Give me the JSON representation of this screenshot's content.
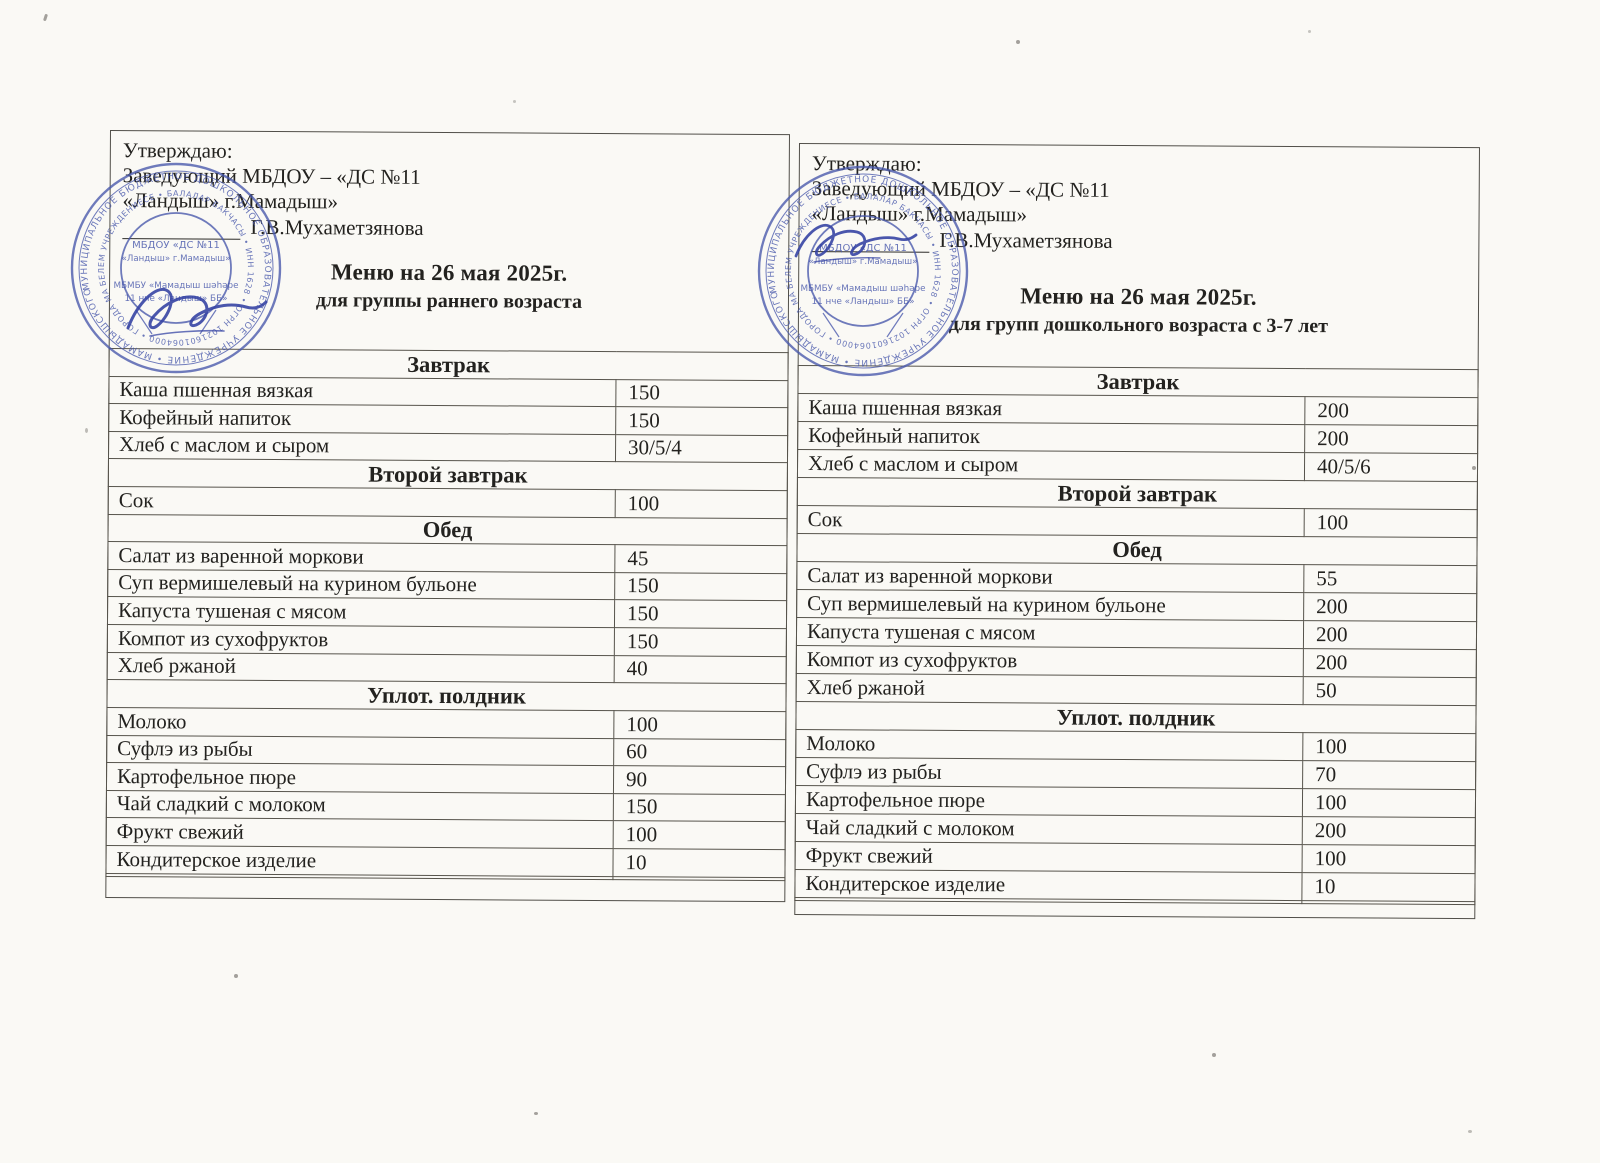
{
  "colors": {
    "paper": "#faf9f5",
    "ink": "#23221f",
    "table_line": "#57544c",
    "stamp_blue": "#4757ab",
    "signature_blue": "#3644a4"
  },
  "stamp": {
    "ring_outer": "МУНИЦИПАЛЬНОЕ БЮДЖЕТНОЕ ДОШКОЛЬНОЕ ОБРАЗОВАТЕЛЬНОЕ УЧРЕЖДЕНИЕ • МАМАДЫШСКОГО МУНИЦИПАЛЬНОГО РАЙОНА РЕСПУБЛИКИ ТАТАРСТАН",
    "ring_middle": "БЕЛЕМ УЧРЕЖДЕНИЕСЕ • БАЛАЛАР БАКЧАСЫ • ИНН 1628 • ОГРН 1021601064000 • ГОРОДА МАМАДЫШ",
    "center_line1": "МБДОУ «ДС №11",
    "center_line2": "«Ландыш» г.Мамадыш»",
    "center_line3": "МБМБУ «Мамадыш шәһәре",
    "center_line4": "11 нче «Ландыш» ББ»"
  },
  "menus": [
    {
      "approve_line1": "Утверждаю:",
      "approve_line2": "Заведующий МБДОУ – «ДС №11",
      "approve_line3": "«Ландыш» г.Мамадыш»",
      "signatory": "Г.В.Мухаметзянова",
      "title": "Меню на 26 мая 2025г.",
      "subtitle": "для группы раннего возраста",
      "rows": [
        {
          "type": "section",
          "label": "Завтрак"
        },
        {
          "type": "item",
          "name": "Каша пшенная вязкая",
          "qty": "150"
        },
        {
          "type": "item",
          "name": "Кофейный напиток",
          "qty": "150"
        },
        {
          "type": "item",
          "name": "Хлеб с маслом и сыром",
          "qty": "30/5/4"
        },
        {
          "type": "section",
          "label": "Второй завтрак"
        },
        {
          "type": "item",
          "name": "Сок",
          "qty": "100"
        },
        {
          "type": "section",
          "label": "Обед"
        },
        {
          "type": "item",
          "name": "Салат из варенной моркови",
          "qty": "45"
        },
        {
          "type": "item",
          "name": "Суп вермишелевый на курином бульоне",
          "qty": "150"
        },
        {
          "type": "item",
          "name": "Капуста тушеная с мясом",
          "qty": "150"
        },
        {
          "type": "item",
          "name": "Компот из сухофруктов",
          "qty": "150"
        },
        {
          "type": "item",
          "name": "Хлеб ржаной",
          "qty": "40"
        },
        {
          "type": "section",
          "label": "Уплот. полдник"
        },
        {
          "type": "item",
          "name": "Молоко",
          "qty": "100"
        },
        {
          "type": "item",
          "name": "Суфлэ из рыбы",
          "qty": "60"
        },
        {
          "type": "item",
          "name": "Картофельное пюре",
          "qty": "90"
        },
        {
          "type": "item",
          "name": "Чай сладкий с молоком",
          "qty": "150"
        },
        {
          "type": "item",
          "name": "Фрукт свежий",
          "qty": "100"
        },
        {
          "type": "item",
          "name": "Кондитерское изделие",
          "qty": "10"
        },
        {
          "type": "item",
          "name": "",
          "qty": ""
        }
      ]
    },
    {
      "approve_line1": "Утверждаю:",
      "approve_line2": "Заведующий МБДОУ – «ДС №11",
      "approve_line3": "«Ландыш» г.Мамадыш»",
      "signatory": "Г.В.Мухаметзянова",
      "title": "Меню на 26 мая  2025г.",
      "subtitle": "для групп дошкольного возраста с 3-7 лет",
      "rows": [
        {
          "type": "section",
          "label": "Завтрак"
        },
        {
          "type": "item",
          "name": "Каша пшенная вязкая",
          "qty": "200"
        },
        {
          "type": "item",
          "name": "Кофейный напиток",
          "qty": "200"
        },
        {
          "type": "item",
          "name": "Хлеб с маслом и сыром",
          "qty": "40/5/6"
        },
        {
          "type": "section",
          "label": "Второй завтрак"
        },
        {
          "type": "item",
          "name": "Сок",
          "qty": "100"
        },
        {
          "type": "section",
          "label": "Обед"
        },
        {
          "type": "item",
          "name": "Салат из варенной моркови",
          "qty": "55"
        },
        {
          "type": "item",
          "name": "Суп вермишелевый на курином бульоне",
          "qty": "200"
        },
        {
          "type": "item",
          "name": "Капуста тушеная с мясом",
          "qty": "200"
        },
        {
          "type": "item",
          "name": "Компот из сухофруктов",
          "qty": "200"
        },
        {
          "type": "item",
          "name": "Хлеб ржаной",
          "qty": "50"
        },
        {
          "type": "section",
          "label": "Уплот. полдник"
        },
        {
          "type": "item",
          "name": "Молоко",
          "qty": "100"
        },
        {
          "type": "item",
          "name": "Суфлэ из рыбы",
          "qty": "70"
        },
        {
          "type": "item",
          "name": "Картофельное пюре",
          "qty": "100"
        },
        {
          "type": "item",
          "name": "Чай сладкий с молоком",
          "qty": "200"
        },
        {
          "type": "item",
          "name": "Фрукт свежий",
          "qty": "100"
        },
        {
          "type": "item",
          "name": "Кондитерское изделие",
          "qty": "10"
        },
        {
          "type": "item",
          "name": "",
          "qty": ""
        }
      ]
    }
  ]
}
